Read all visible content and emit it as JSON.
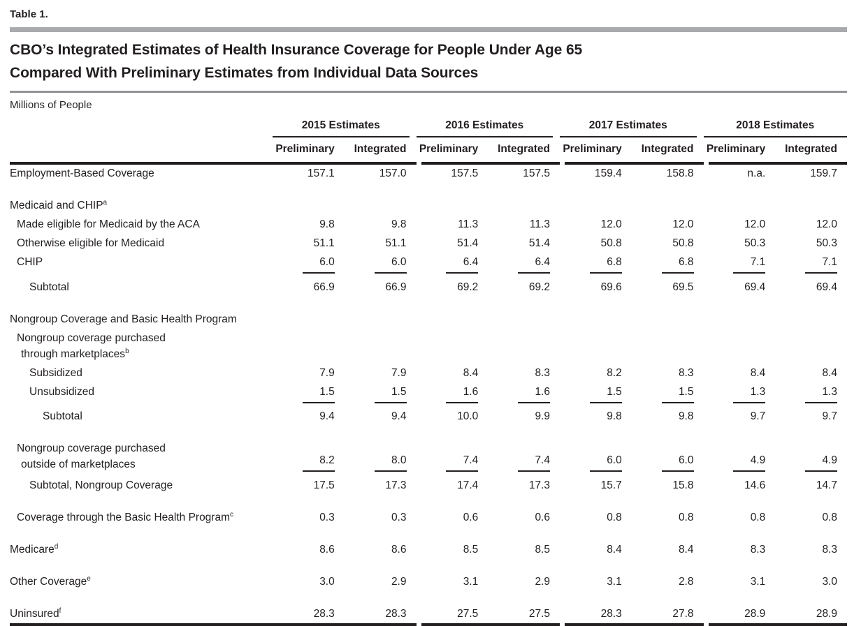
{
  "meta": {
    "table_label": "Table 1."
  },
  "title": {
    "line1": "CBO’s Integrated Estimates of Health Insurance Coverage for People Under Age 65",
    "line2": "Compared With Preliminary Estimates from Individual Data Sources"
  },
  "units_label": "Millions of People",
  "header": {
    "groups": [
      {
        "label": "2015 Estimates",
        "columns": [
          "Preliminary",
          "Integrated"
        ]
      },
      {
        "label": "2016 Estimates",
        "columns": [
          "Preliminary",
          "Integrated"
        ]
      },
      {
        "label": "2017 Estimates",
        "columns": [
          "Preliminary",
          "Integrated"
        ]
      },
      {
        "label": "2018 Estimates",
        "columns": [
          "Preliminary",
          "Integrated"
        ]
      }
    ]
  },
  "rows": [
    {
      "type": "data",
      "indent": 0,
      "label": "Employment-Based Coverage",
      "values": [
        "157.1",
        "157.0",
        "157.5",
        "157.5",
        "159.4",
        "158.8",
        "n.a.",
        "159.7"
      ]
    },
    {
      "type": "spacer"
    },
    {
      "type": "section",
      "indent": 0,
      "label": "Medicaid and CHIP",
      "footnote": "a"
    },
    {
      "type": "data",
      "indent": 1,
      "label": "Made eligible for Medicaid by the ACA",
      "values": [
        "9.8",
        "9.8",
        "11.3",
        "11.3",
        "12.0",
        "12.0",
        "12.0",
        "12.0"
      ]
    },
    {
      "type": "data",
      "indent": 1,
      "label": "Otherwise eligible for Medicaid",
      "values": [
        "51.1",
        "51.1",
        "51.4",
        "51.4",
        "50.8",
        "50.8",
        "50.3",
        "50.3"
      ]
    },
    {
      "type": "data",
      "indent": 1,
      "label": "CHIP",
      "rule_below": true,
      "values": [
        "6.0",
        "6.0",
        "6.4",
        "6.4",
        "6.8",
        "6.8",
        "7.1",
        "7.1"
      ]
    },
    {
      "type": "subtotal",
      "indent": 2,
      "label": "Subtotal",
      "values": [
        "66.9",
        "66.9",
        "69.2",
        "69.2",
        "69.6",
        "69.5",
        "69.4",
        "69.4"
      ]
    },
    {
      "type": "spacer"
    },
    {
      "type": "section",
      "indent": 0,
      "label": "Nongroup Coverage and Basic Health Program"
    },
    {
      "type": "section",
      "indent": 1,
      "label": "Nongroup coverage purchased",
      "label2": "through marketplaces",
      "footnote2": "b"
    },
    {
      "type": "data",
      "indent": 2,
      "label": "Subsidized",
      "values": [
        "7.9",
        "7.9",
        "8.4",
        "8.3",
        "8.2",
        "8.3",
        "8.4",
        "8.4"
      ]
    },
    {
      "type": "data",
      "indent": 2,
      "label": "Unsubsidized",
      "rule_below": true,
      "values": [
        "1.5",
        "1.5",
        "1.6",
        "1.6",
        "1.5",
        "1.5",
        "1.3",
        "1.3"
      ]
    },
    {
      "type": "subtotal",
      "indent": 3,
      "label": "Subtotal",
      "values": [
        "9.4",
        "9.4",
        "10.0",
        "9.9",
        "9.8",
        "9.8",
        "9.7",
        "9.7"
      ]
    },
    {
      "type": "spacer"
    },
    {
      "type": "data2",
      "indent": 1,
      "label": "Nongroup coverage purchased",
      "label2": "outside of marketplaces",
      "rule_below": true,
      "values": [
        "8.2",
        "8.0",
        "7.4",
        "7.4",
        "6.0",
        "6.0",
        "4.9",
        "4.9"
      ]
    },
    {
      "type": "subtotal",
      "indent": 2,
      "label": "Subtotal, Nongroup Coverage",
      "values": [
        "17.5",
        "17.3",
        "17.4",
        "17.3",
        "15.7",
        "15.8",
        "14.6",
        "14.7"
      ]
    },
    {
      "type": "spacer"
    },
    {
      "type": "data",
      "indent": 1,
      "label": "Coverage through the Basic Health Program",
      "footnote": "c",
      "values": [
        "0.3",
        "0.3",
        "0.6",
        "0.6",
        "0.8",
        "0.8",
        "0.8",
        "0.8"
      ]
    },
    {
      "type": "spacer"
    },
    {
      "type": "data",
      "indent": 0,
      "label": "Medicare",
      "footnote": "d",
      "values": [
        "8.6",
        "8.6",
        "8.5",
        "8.5",
        "8.4",
        "8.4",
        "8.3",
        "8.3"
      ]
    },
    {
      "type": "spacer"
    },
    {
      "type": "data",
      "indent": 0,
      "label": "Other Coverage",
      "footnote": "e",
      "values": [
        "3.0",
        "2.9",
        "3.1",
        "2.9",
        "3.1",
        "2.8",
        "3.1",
        "3.0"
      ]
    },
    {
      "type": "spacer"
    },
    {
      "type": "data",
      "indent": 0,
      "label": "Uninsured",
      "footnote": "f",
      "values": [
        "28.3",
        "28.3",
        "27.5",
        "27.5",
        "28.3",
        "27.8",
        "28.9",
        "28.9"
      ]
    }
  ],
  "colors": {
    "text": "#231f20",
    "rule": "#231f20",
    "gray_bar": "#a8aaad",
    "gray_line": "#919396"
  }
}
